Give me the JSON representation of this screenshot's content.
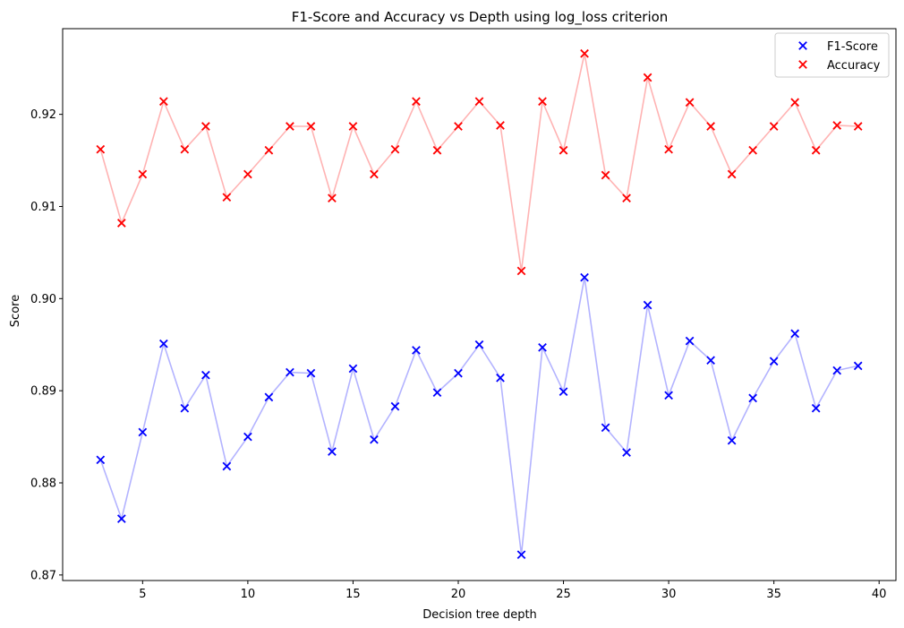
{
  "chart_data": {
    "type": "scatter",
    "title": "F1-Score and Accuracy vs Depth using log_loss criterion",
    "xlabel": "Decision tree depth",
    "ylabel": "Score",
    "xlim": [
      1.2,
      40.8
    ],
    "ylim": [
      0.8694,
      0.9293
    ],
    "xticks": [
      5,
      10,
      15,
      20,
      25,
      30,
      35,
      40
    ],
    "yticks": [
      0.87,
      0.88,
      0.89,
      0.9,
      0.91,
      0.92
    ],
    "ytick_labels": [
      "0.87",
      "0.88",
      "0.89",
      "0.90",
      "0.91",
      "0.92"
    ],
    "grid": false,
    "legend_position": "upper-right",
    "x": [
      3,
      4,
      5,
      6,
      7,
      8,
      9,
      10,
      11,
      12,
      13,
      14,
      15,
      16,
      17,
      18,
      19,
      20,
      21,
      22,
      23,
      24,
      25,
      26,
      27,
      28,
      29,
      30,
      31,
      32,
      33,
      34,
      35,
      36,
      37,
      38,
      39
    ],
    "series": [
      {
        "name": "F1-Score",
        "color": "#0000ff",
        "line_color": "#b3b3ff",
        "marker": "x",
        "values": [
          0.8825,
          0.8761,
          0.8855,
          0.8951,
          0.8881,
          0.8917,
          0.8818,
          0.885,
          0.8893,
          0.892,
          0.8919,
          0.8834,
          0.8924,
          0.8847,
          0.8883,
          0.8944,
          0.8898,
          0.8919,
          0.895,
          0.8914,
          0.8722,
          0.8947,
          0.8899,
          0.9023,
          0.886,
          0.8833,
          0.8993,
          0.8895,
          0.8954,
          0.8933,
          0.8846,
          0.8892,
          0.8932,
          0.8962,
          0.8881,
          0.8922,
          0.8927
        ]
      },
      {
        "name": "Accuracy",
        "color": "#ff0000",
        "line_color": "#ffb3b3",
        "marker": "x",
        "values": [
          0.9162,
          0.9082,
          0.9135,
          0.9214,
          0.9162,
          0.9187,
          0.911,
          0.9135,
          0.9161,
          0.9187,
          0.9187,
          0.9109,
          0.9187,
          0.9135,
          0.9162,
          0.9214,
          0.9161,
          0.9187,
          0.9214,
          0.9188,
          0.903,
          0.9214,
          0.9161,
          0.9266,
          0.9134,
          0.9109,
          0.924,
          0.9162,
          0.9213,
          0.9187,
          0.9135,
          0.9161,
          0.9187,
          0.9213,
          0.9161,
          0.9188,
          0.9187
        ]
      }
    ]
  }
}
